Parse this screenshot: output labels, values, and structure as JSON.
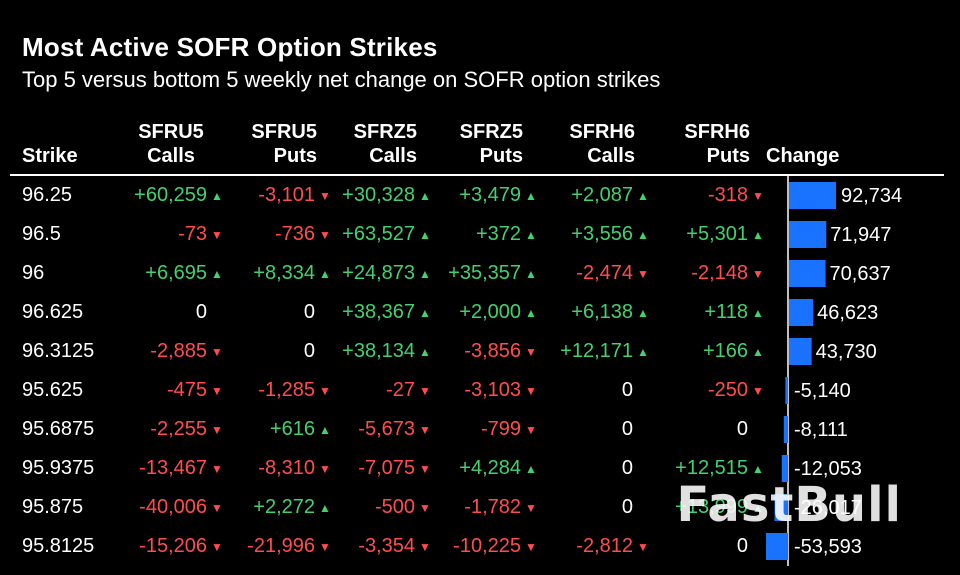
{
  "title": "Most Active SOFR Option Strikes",
  "subtitle": "Top 5 versus bottom 5 weekly net change on SOFR option strikes",
  "headers": {
    "strike": "Strike",
    "cols": [
      {
        "line1": "SFRU5",
        "line2": "Calls"
      },
      {
        "line1": "SFRU5",
        "line2": "Puts"
      },
      {
        "line1": "SFRZ5",
        "line2": "Calls"
      },
      {
        "line1": "SFRZ5",
        "line2": "Puts"
      },
      {
        "line1": "SFRH6",
        "line2": "Calls"
      },
      {
        "line1": "SFRH6",
        "line2": "Puts"
      }
    ],
    "change": "Change"
  },
  "rows": [
    {
      "strike": "96.25",
      "cells": [
        "+60,259",
        "-3,101",
        "+30,328",
        "+3,479",
        "+2,087",
        "-318"
      ],
      "change": "92,734"
    },
    {
      "strike": "96.5",
      "cells": [
        "-73",
        "-736",
        "+63,527",
        "+372",
        "+3,556",
        "+5,301"
      ],
      "change": "71,947"
    },
    {
      "strike": "96",
      "cells": [
        "+6,695",
        "+8,334",
        "+24,873",
        "+35,357",
        "-2,474",
        "-2,148"
      ],
      "change": "70,637"
    },
    {
      "strike": "96.625",
      "cells": [
        "0",
        "0",
        "+38,367",
        "+2,000",
        "+6,138",
        "+118"
      ],
      "change": "46,623"
    },
    {
      "strike": "96.3125",
      "cells": [
        "-2,885",
        "0",
        "+38,134",
        "-3,856",
        "+12,171",
        "+166"
      ],
      "change": "43,730"
    },
    {
      "strike": "95.625",
      "cells": [
        "-475",
        "-1,285",
        "-27",
        "-3,103",
        "0",
        "-250"
      ],
      "change": "-5,140"
    },
    {
      "strike": "95.6875",
      "cells": [
        "-2,255",
        "+616",
        "-5,673",
        "-799",
        "0",
        "0"
      ],
      "change": "-8,111"
    },
    {
      "strike": "95.9375",
      "cells": [
        "-13,467",
        "-8,310",
        "-7,075",
        "+4,284",
        "0",
        "+12,515"
      ],
      "change": "-12,053"
    },
    {
      "strike": "95.875",
      "cells": [
        "-40,006",
        "+2,272",
        "-500",
        "-1,782",
        "0",
        "+13,999"
      ],
      "change": "-26,017"
    },
    {
      "strike": "95.8125",
      "cells": [
        "-15,206",
        "-21,996",
        "-3,354",
        "-10,225",
        "-2,812",
        "0"
      ],
      "change": "-53,593"
    }
  ],
  "colors": {
    "positive": "#44d16d",
    "negative": "#ff4d4d",
    "bar": "#1a73ff",
    "background": "#000000"
  },
  "watermark": "FastBull",
  "chart_data": {
    "type": "table",
    "title": "Most Active SOFR Option Strikes",
    "subtitle": "Top 5 versus bottom 5 weekly net change on SOFR option strikes",
    "bar_column": "Change",
    "categories": [
      "96.25",
      "96.5",
      "96",
      "96.625",
      "96.3125",
      "95.625",
      "95.6875",
      "95.9375",
      "95.875",
      "95.8125"
    ],
    "values": [
      92734,
      71947,
      70637,
      46623,
      43730,
      -5140,
      -8111,
      -12053,
      -26017,
      -53593
    ],
    "value_range": [
      -53593,
      92734
    ]
  }
}
